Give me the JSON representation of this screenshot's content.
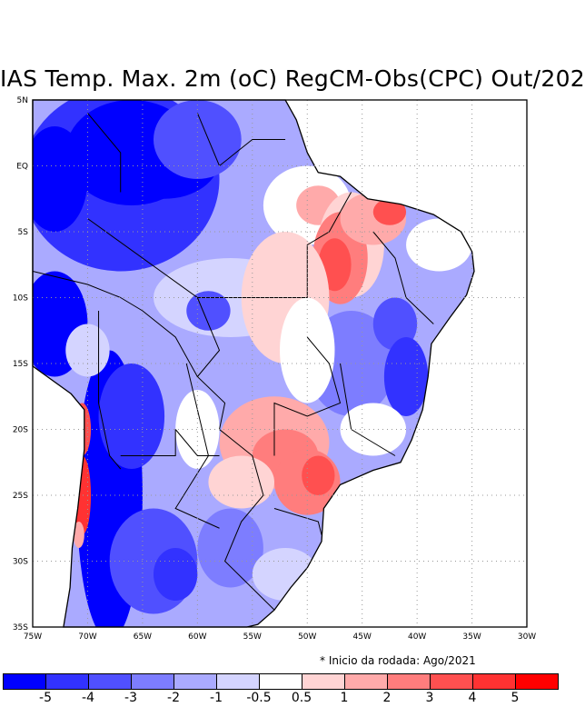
{
  "title": "IAS Temp. Max. 2m (oC) RegCM-Obs(CPC) Out/202",
  "footnote": "* Inicio da rodada: Ago/2021",
  "lat_ticks": [
    "5N",
    "EQ",
    "5S",
    "10S",
    "15S",
    "20S",
    "25S",
    "30S",
    "35S"
  ],
  "lon_ticks": [
    "75W",
    "70W",
    "65W",
    "60W",
    "55W",
    "50W",
    "45W",
    "40W",
    "35W",
    "30W"
  ],
  "colorbar": {
    "colors": [
      "#0000ff",
      "#3232ff",
      "#5050ff",
      "#7d7dff",
      "#aaaaff",
      "#d4d4ff",
      "#ffffff",
      "#ffd4d4",
      "#ffaaaa",
      "#ff7d7d",
      "#ff5050",
      "#ff3232",
      "#ff0000"
    ],
    "labels": [
      "-5",
      "-4",
      "-3",
      "-2",
      "-1",
      "-0.5",
      "0.5",
      "1",
      "2",
      "3",
      "4",
      "5"
    ]
  }
}
